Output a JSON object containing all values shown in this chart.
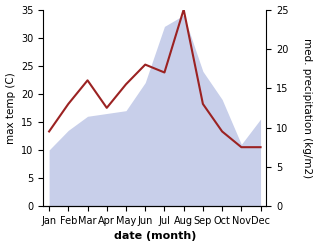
{
  "months": [
    "Jan",
    "Feb",
    "Mar",
    "Apr",
    "May",
    "Jun",
    "Jul",
    "Aug",
    "Sep",
    "Oct",
    "Nov",
    "Dec"
  ],
  "temperature": [
    10,
    13.5,
    16,
    16.5,
    17,
    22,
    32,
    34,
    24,
    19,
    11,
    15.5
  ],
  "precipitation": [
    9.5,
    13,
    16,
    12.5,
    15.5,
    18,
    17,
    25,
    13,
    9.5,
    7.5,
    7.5
  ],
  "precip_color": "#9b2222",
  "temp_fill_color": "#c8cfea",
  "xlabel": "date (month)",
  "ylabel_left": "max temp (C)",
  "ylabel_right": "med. precipitation (kg/m2)",
  "ylim_left": [
    0,
    35
  ],
  "ylim_right": [
    0,
    25
  ],
  "yticks_left": [
    0,
    5,
    10,
    15,
    20,
    25,
    30,
    35
  ],
  "yticks_right": [
    0,
    5,
    10,
    15,
    20,
    25
  ],
  "background_color": "#ffffff",
  "xlabel_fontsize": 8,
  "ylabel_fontsize": 7.5,
  "tick_fontsize": 7
}
